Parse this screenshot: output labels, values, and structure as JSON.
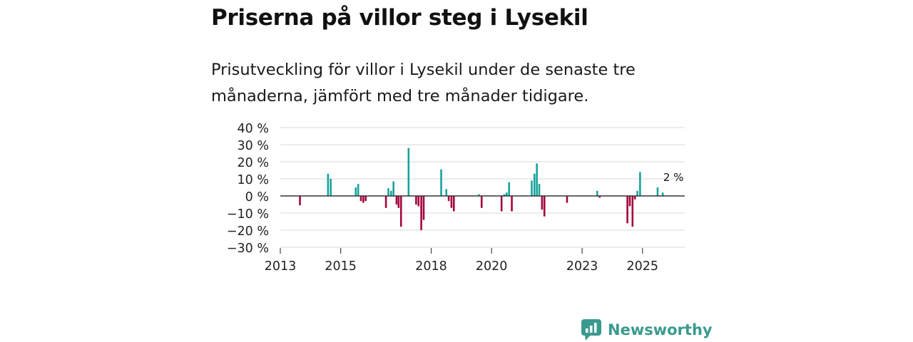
{
  "title": "Priserna på villor steg i Lysekil",
  "subtitle": "Prisutveckling för villor i Lysekil under de senaste tre månaderna, jämfört med tre månader tidigare.",
  "brand": {
    "name": "Newsworthy",
    "color": "#3a9a8e"
  },
  "colors": {
    "positive": "#18a39b",
    "negative": "#a3063d",
    "grid": "#d9d9d9",
    "zero": "#333333"
  },
  "chart_data": {
    "type": "bar",
    "title": "",
    "xlabel": "",
    "ylabel": "",
    "ylim": [
      -30,
      40
    ],
    "yticks": [
      40,
      30,
      20,
      10,
      0,
      -10,
      -20,
      -30
    ],
    "ytick_labels": [
      "40 %",
      "30 %",
      "20 %",
      "10 %",
      "0 %",
      "−10 %",
      "−20 %",
      "−30 %"
    ],
    "xlim": [
      2013.0,
      2026.4
    ],
    "xticks": [
      2013,
      2015,
      2018,
      2020,
      2023,
      2025
    ],
    "xtick_labels": [
      "2013",
      "2015",
      "2018",
      "2020",
      "2023",
      "2025"
    ],
    "last_label": "2 %",
    "series": [
      {
        "name": "Prisutveckling",
        "points": [
          [
            2013.65,
            -5.5
          ],
          [
            2014.58,
            13
          ],
          [
            2014.67,
            10
          ],
          [
            2015.5,
            5
          ],
          [
            2015.58,
            7
          ],
          [
            2015.67,
            -3
          ],
          [
            2015.75,
            -4
          ],
          [
            2015.83,
            -3
          ],
          [
            2016.5,
            -7
          ],
          [
            2016.58,
            4.5
          ],
          [
            2016.67,
            3
          ],
          [
            2016.75,
            8.5
          ],
          [
            2016.85,
            -5
          ],
          [
            2016.92,
            -7
          ],
          [
            2017.0,
            -18
          ],
          [
            2017.25,
            28
          ],
          [
            2017.5,
            -5
          ],
          [
            2017.58,
            -6
          ],
          [
            2017.67,
            -20
          ],
          [
            2017.75,
            -14
          ],
          [
            2018.33,
            15.5
          ],
          [
            2018.5,
            4
          ],
          [
            2018.58,
            -3
          ],
          [
            2018.67,
            -7
          ],
          [
            2018.75,
            -9
          ],
          [
            2019.58,
            1
          ],
          [
            2019.67,
            -7
          ],
          [
            2020.33,
            -9
          ],
          [
            2020.42,
            1
          ],
          [
            2020.5,
            2
          ],
          [
            2020.58,
            8
          ],
          [
            2020.67,
            -9
          ],
          [
            2021.33,
            9
          ],
          [
            2021.42,
            13
          ],
          [
            2021.5,
            19
          ],
          [
            2021.58,
            7
          ],
          [
            2021.67,
            -8
          ],
          [
            2021.75,
            -12
          ],
          [
            2022.5,
            -4
          ],
          [
            2023.5,
            3
          ],
          [
            2023.58,
            -1
          ],
          [
            2024.5,
            -16
          ],
          [
            2024.58,
            -6
          ],
          [
            2024.67,
            -18
          ],
          [
            2024.75,
            -2
          ],
          [
            2024.83,
            3
          ],
          [
            2024.92,
            14
          ],
          [
            2025.5,
            5
          ],
          [
            2025.67,
            2
          ]
        ]
      }
    ]
  }
}
